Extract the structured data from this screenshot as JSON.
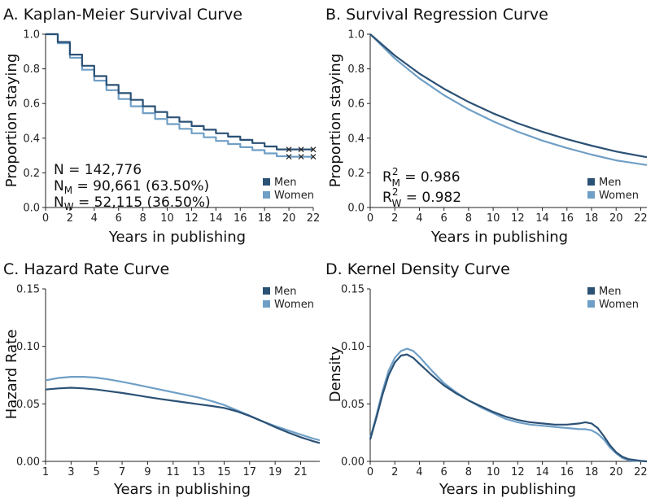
{
  "colors": {
    "men": "#2b5175",
    "women": "#6f9fc6"
  },
  "chart_data": [
    {
      "id": "A",
      "type": "line",
      "step": true,
      "title": "A. Kaplan-Meier Survival Curve",
      "xlabel": "Years in publishing",
      "ylabel": "Proportion staying",
      "xlim": [
        0,
        22
      ],
      "ylim": [
        0,
        1
      ],
      "xticks": [
        "0",
        "2",
        "4",
        "6",
        "8",
        "10",
        "12",
        "14",
        "16",
        "18",
        "20",
        "22"
      ],
      "yticks": [
        "0.0",
        "0.2",
        "0.4",
        "0.6",
        "0.8",
        "1.0"
      ],
      "legend_position": "bottom-right",
      "annotations": {
        "n": "N = 142,776",
        "nm_main": "N",
        "nm_sub": "M",
        "nm_rest": " = 90,661 (63.50%)",
        "nw_main": "N",
        "nw_sub": "W",
        "nw_rest": " = 52,115 (36.50%)"
      },
      "series": [
        {
          "name": "Men",
          "x": [
            0,
            1,
            2,
            3,
            4,
            5,
            6,
            7,
            8,
            9,
            10,
            11,
            12,
            13,
            14,
            15,
            16,
            17,
            18,
            19,
            20,
            21,
            22
          ],
          "values": [
            1.0,
            0.955,
            0.882,
            0.818,
            0.758,
            0.707,
            0.66,
            0.621,
            0.584,
            0.551,
            0.52,
            0.495,
            0.47,
            0.449,
            0.428,
            0.409,
            0.39,
            0.372,
            0.352,
            0.335,
            0.335,
            0.335,
            0.335
          ]
        },
        {
          "name": "Women",
          "x": [
            0,
            1,
            2,
            3,
            4,
            5,
            6,
            7,
            8,
            9,
            10,
            11,
            12,
            13,
            14,
            15,
            16,
            17,
            18,
            19,
            20,
            21,
            22
          ],
          "values": [
            1.0,
            0.948,
            0.864,
            0.795,
            0.732,
            0.677,
            0.626,
            0.584,
            0.544,
            0.511,
            0.481,
            0.454,
            0.428,
            0.405,
            0.384,
            0.366,
            0.348,
            0.331,
            0.312,
            0.296,
            0.293,
            0.293,
            0.293
          ]
        }
      ]
    },
    {
      "id": "B",
      "type": "line",
      "title": "B. Survival Regression Curve",
      "xlabel": "Years in publishing",
      "ylabel": "Proportion staying",
      "xlim": [
        0,
        22.5
      ],
      "ylim": [
        0,
        1
      ],
      "xticks": [
        "0",
        "2",
        "4",
        "6",
        "8",
        "10",
        "12",
        "14",
        "16",
        "18",
        "20",
        "22"
      ],
      "yticks": [
        "0.0",
        "0.2",
        "0.4",
        "0.6",
        "0.8",
        "1.0"
      ],
      "legend_position": "bottom-right",
      "annotations": {
        "rm_main": "R",
        "rm_sup": "2",
        "rm_sub": "M",
        "rm_rest": " = 0.986",
        "rw_main": "R",
        "rw_sup": "2",
        "rw_sub": "W",
        "rw_rest": " = 0.982"
      },
      "series": [
        {
          "name": "Men",
          "x": [
            0,
            2,
            4,
            6,
            8,
            10,
            12,
            14,
            16,
            18,
            20,
            22.5
          ],
          "values": [
            1.0,
            0.877,
            0.773,
            0.685,
            0.609,
            0.543,
            0.486,
            0.437,
            0.394,
            0.357,
            0.323,
            0.29
          ]
        },
        {
          "name": "Women",
          "x": [
            0,
            2,
            4,
            6,
            8,
            10,
            12,
            14,
            16,
            18,
            20,
            22.5
          ],
          "values": [
            1.0,
            0.86,
            0.745,
            0.648,
            0.566,
            0.497,
            0.437,
            0.386,
            0.343,
            0.305,
            0.272,
            0.245
          ]
        }
      ]
    },
    {
      "id": "C",
      "type": "line",
      "title": "C. Hazard Rate Curve",
      "xlabel": "Years in publishing",
      "ylabel": "Hazard Rate",
      "xlim": [
        1,
        22.5
      ],
      "ylim": [
        0,
        0.15
      ],
      "xticks": [
        "1",
        "3",
        "5",
        "7",
        "9",
        "11",
        "13",
        "15",
        "17",
        "19",
        "21"
      ],
      "yticks": [
        "0.00",
        "0.05",
        "0.10",
        "0.15"
      ],
      "legend_position": "top-right",
      "series": [
        {
          "name": "Men",
          "x": [
            1,
            2,
            3,
            4,
            5,
            6,
            7,
            8,
            9,
            10,
            11,
            12,
            13,
            14,
            15,
            16,
            17,
            18,
            19,
            20,
            21,
            22,
            22.5
          ],
          "values": [
            0.0625,
            0.0635,
            0.064,
            0.0635,
            0.0625,
            0.061,
            0.0595,
            0.0578,
            0.056,
            0.0543,
            0.0527,
            0.0512,
            0.0497,
            0.0482,
            0.0465,
            0.0435,
            0.0395,
            0.0348,
            0.0298,
            0.0252,
            0.021,
            0.0175,
            0.016
          ]
        },
        {
          "name": "Women",
          "x": [
            1,
            2,
            3,
            4,
            5,
            6,
            7,
            8,
            9,
            10,
            11,
            12,
            13,
            14,
            15,
            16,
            17,
            18,
            19,
            20,
            21,
            22,
            22.5
          ],
          "values": [
            0.0705,
            0.0725,
            0.0735,
            0.0735,
            0.0728,
            0.0712,
            0.0692,
            0.067,
            0.0647,
            0.0624,
            0.0601,
            0.0578,
            0.0555,
            0.0525,
            0.049,
            0.0445,
            0.0398,
            0.0348,
            0.0308,
            0.027,
            0.0233,
            0.0198,
            0.0183
          ]
        }
      ]
    },
    {
      "id": "D",
      "type": "line",
      "title": "D. Kernel Density Curve",
      "xlabel": "Years in publishing",
      "ylabel": "Density",
      "xlim": [
        0,
        22.5
      ],
      "ylim": [
        0,
        0.15
      ],
      "xticks": [
        "0",
        "2",
        "4",
        "6",
        "8",
        "10",
        "12",
        "14",
        "16",
        "18",
        "20",
        "22"
      ],
      "yticks": [
        "0.00",
        "0.05",
        "0.10",
        "0.15"
      ],
      "legend_position": "top-right",
      "series": [
        {
          "name": "Men",
          "x": [
            0,
            0.5,
            1,
            1.5,
            2,
            2.5,
            3,
            3.5,
            4,
            5,
            6,
            7,
            8,
            9,
            10,
            11,
            12,
            13,
            14,
            15,
            16,
            17,
            17.5,
            18,
            18.5,
            19,
            19.5,
            20,
            20.5,
            21,
            22,
            22.5
          ],
          "values": [
            0.019,
            0.038,
            0.058,
            0.075,
            0.086,
            0.092,
            0.093,
            0.09,
            0.085,
            0.075,
            0.066,
            0.059,
            0.053,
            0.048,
            0.043,
            0.039,
            0.036,
            0.034,
            0.033,
            0.032,
            0.032,
            0.033,
            0.034,
            0.033,
            0.029,
            0.022,
            0.014,
            0.008,
            0.004,
            0.002,
            0.0005,
            0.0
          ]
        },
        {
          "name": "Women",
          "x": [
            0,
            0.5,
            1,
            1.5,
            2,
            2.5,
            3,
            3.5,
            4,
            5,
            6,
            7,
            8,
            9,
            10,
            11,
            12,
            13,
            14,
            15,
            16,
            17,
            17.5,
            18,
            18.5,
            19,
            19.5,
            20,
            20.5,
            21,
            22,
            22.5
          ],
          "values": [
            0.02,
            0.04,
            0.061,
            0.079,
            0.09,
            0.096,
            0.098,
            0.096,
            0.091,
            0.079,
            0.068,
            0.06,
            0.053,
            0.047,
            0.042,
            0.037,
            0.034,
            0.032,
            0.031,
            0.03,
            0.029,
            0.028,
            0.028,
            0.027,
            0.024,
            0.019,
            0.012,
            0.007,
            0.003,
            0.001,
            0.0003,
            0.0
          ]
        }
      ]
    }
  ]
}
